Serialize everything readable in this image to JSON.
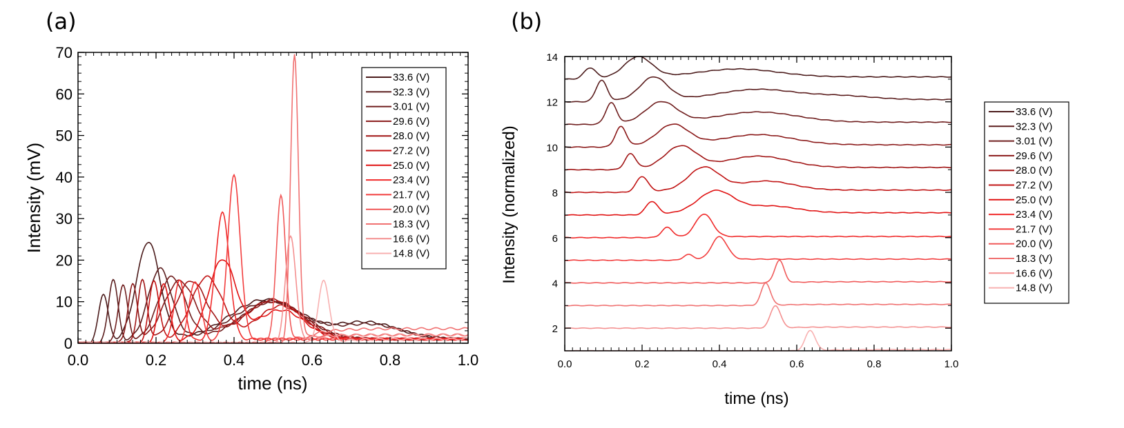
{
  "chart_data": [
    {
      "type": "line",
      "panel_label": "(a)",
      "xlabel": "time (ns)",
      "ylabel": "Intensity (mV)",
      "xlim": [
        0,
        1.0
      ],
      "ylim": [
        0,
        70
      ],
      "x_ticks": [
        "0.0",
        "0.2",
        "0.4",
        "0.6",
        "0.8",
        "1.0"
      ],
      "y_ticks": [
        "0",
        "10",
        "20",
        "30",
        "40",
        "50",
        "60",
        "70"
      ],
      "legend": {
        "placement": "top-right"
      },
      "series": [
        {
          "name": "33.6 (V)",
          "color": "#4a1a1a",
          "peaks": [
            [
              0.065,
              12,
              0.012
            ],
            [
              0.18,
              23.5,
              0.03
            ],
            [
              0.48,
              9.5,
              0.09
            ],
            [
              0.74,
              4,
              0.08
            ]
          ],
          "tail": 1.0
        },
        {
          "name": "32.3 (V)",
          "color": "#5a1c1c",
          "peaks": [
            [
              0.09,
              15.5,
              0.012
            ],
            [
              0.21,
              17,
              0.03
            ],
            [
              0.49,
              9,
              0.09
            ],
            [
              0.75,
              3.5,
              0.08
            ]
          ],
          "tail": 1.0
        },
        {
          "name": "3.01 (V)",
          "color": "#6e1c1c",
          "peaks": [
            [
              0.115,
              14,
              0.012
            ],
            [
              0.24,
              15,
              0.035
            ],
            [
              0.5,
              9,
              0.08
            ]
          ],
          "tail": 1.0
        },
        {
          "name": "29.6 (V)",
          "color": "#8a1818",
          "peaks": [
            [
              0.14,
              14,
              0.012
            ],
            [
              0.26,
              14,
              0.04
            ],
            [
              0.5,
              9,
              0.08
            ]
          ],
          "tail": 1.0
        },
        {
          "name": "28.0 (V)",
          "color": "#a01414",
          "peaks": [
            [
              0.165,
              15,
              0.012
            ],
            [
              0.29,
              14,
              0.04
            ],
            [
              0.5,
              9.5,
              0.07
            ]
          ],
          "tail": 1.0
        },
        {
          "name": "27.2 (V)",
          "color": "#c01212",
          "peaks": [
            [
              0.195,
              15,
              0.013
            ],
            [
              0.33,
              15,
              0.04
            ],
            [
              0.52,
              8,
              0.06
            ]
          ],
          "tail": 1.0
        },
        {
          "name": "25.0 (V)",
          "color": "#e01010",
          "peaks": [
            [
              0.22,
              14.5,
              0.014
            ],
            [
              0.37,
              19,
              0.035
            ],
            [
              0.52,
              7,
              0.06
            ]
          ],
          "tail": 1.0
        },
        {
          "name": "23.4 (V)",
          "color": "#f02828",
          "peaks": [
            [
              0.26,
              15,
              0.014
            ],
            [
              0.37,
              30.5,
              0.018
            ]
          ],
          "tail": 1.0
        },
        {
          "name": "21.7 (V)",
          "color": "#f23c3c",
          "peaks": [
            [
              0.3,
              15,
              0.015
            ],
            [
              0.4,
              39.5,
              0.016
            ]
          ],
          "tail": 1.0
        },
        {
          "name": "20.0 (V)",
          "color": "#f05858",
          "peaks": [
            [
              0.52,
              35.5,
              0.012
            ]
          ],
          "tail": 2.0
        },
        {
          "name": "18.3 (V)",
          "color": "#f07070",
          "peaks": [
            [
              0.555,
              69.5,
              0.01
            ]
          ],
          "tail": 3.5
        },
        {
          "name": "16.6 (V)",
          "color": "#f49090",
          "peaks": [
            [
              0.545,
              26,
              0.013
            ]
          ],
          "tail": 2.0
        },
        {
          "name": "14.8 (V)",
          "color": "#f8b0b0",
          "peaks": [
            [
              0.63,
              15,
              0.014
            ]
          ],
          "tail": 1.0
        }
      ]
    },
    {
      "type": "line",
      "panel_label": "(b)",
      "xlabel": "time (ns)",
      "ylabel": "Intensity (normalized)",
      "xlim": [
        0,
        1.0
      ],
      "ylim": [
        1,
        14
      ],
      "x_ticks": [
        "0.0",
        "0.2",
        "0.4",
        "0.6",
        "0.8",
        "1.0"
      ],
      "y_ticks": [
        "2",
        "4",
        "6",
        "8",
        "10",
        "12",
        "14"
      ],
      "legend": {
        "placement": "right, outside plot"
      },
      "series": [
        {
          "name": "33.6 (V)",
          "color": "#4a1a1a",
          "baseline": 13,
          "peaks": [
            [
              0.065,
              0.5,
              0.015
            ],
            [
              0.19,
              0.9,
              0.035
            ],
            [
              0.45,
              0.35,
              0.1
            ]
          ],
          "tail": 0.1
        },
        {
          "name": "32.3 (V)",
          "color": "#5a1c1c",
          "baseline": 12,
          "peaks": [
            [
              0.095,
              0.95,
              0.014
            ],
            [
              0.23,
              1.0,
              0.035
            ],
            [
              0.5,
              0.45,
              0.1
            ],
            [
              0.72,
              0.15,
              0.08
            ]
          ],
          "tail": 0.1
        },
        {
          "name": "3.01 (V)",
          "color": "#6e1c1c",
          "baseline": 11,
          "peaks": [
            [
              0.12,
              0.95,
              0.014
            ],
            [
              0.25,
              0.9,
              0.04
            ],
            [
              0.5,
              0.45,
              0.1
            ]
          ],
          "tail": 0.1
        },
        {
          "name": "29.6 (V)",
          "color": "#8a1818",
          "baseline": 10,
          "peaks": [
            [
              0.145,
              0.9,
              0.014
            ],
            [
              0.28,
              0.9,
              0.04
            ],
            [
              0.5,
              0.45,
              0.09
            ]
          ],
          "tail": 0.1
        },
        {
          "name": "28.0 (V)",
          "color": "#a01414",
          "baseline": 9,
          "peaks": [
            [
              0.17,
              0.7,
              0.014
            ],
            [
              0.3,
              0.95,
              0.04
            ],
            [
              0.5,
              0.5,
              0.08
            ]
          ],
          "tail": 0.1
        },
        {
          "name": "27.2 (V)",
          "color": "#c01212",
          "baseline": 8,
          "peaks": [
            [
              0.2,
              0.7,
              0.015
            ],
            [
              0.36,
              1.0,
              0.04
            ],
            [
              0.52,
              0.4,
              0.07
            ]
          ],
          "tail": 0.1
        },
        {
          "name": "25.0 (V)",
          "color": "#e01010",
          "baseline": 7,
          "peaks": [
            [
              0.225,
              0.6,
              0.015
            ],
            [
              0.39,
              0.95,
              0.045
            ],
            [
              0.53,
              0.3,
              0.07
            ]
          ],
          "tail": 0.1
        },
        {
          "name": "23.4 (V)",
          "color": "#f02828",
          "baseline": 6,
          "peaks": [
            [
              0.265,
              0.45,
              0.014
            ],
            [
              0.36,
              1.0,
              0.022
            ]
          ],
          "tail": 0.05
        },
        {
          "name": "21.7 (V)",
          "color": "#f23c3c",
          "baseline": 5,
          "peaks": [
            [
              0.32,
              0.25,
              0.013
            ],
            [
              0.4,
              1.0,
              0.02
            ]
          ],
          "tail": 0.05
        },
        {
          "name": "20.0 (V)",
          "color": "#f05858",
          "baseline": 4,
          "peaks": [
            [
              0.555,
              1.0,
              0.012
            ]
          ],
          "tail": 0.05
        },
        {
          "name": "18.3 (V)",
          "color": "#f07070",
          "baseline": 3,
          "peaks": [
            [
              0.52,
              1.0,
              0.012
            ]
          ],
          "tail": 0.05
        },
        {
          "name": "16.6 (V)",
          "color": "#f49090",
          "baseline": 2,
          "peaks": [
            [
              0.545,
              1.0,
              0.013
            ]
          ],
          "tail": 0.05
        },
        {
          "name": "14.8 (V)",
          "color": "#f8b0b0",
          "baseline": 1,
          "peaks": [
            [
              0.635,
              0.9,
              0.013
            ]
          ],
          "tail": 0.05
        }
      ]
    }
  ]
}
